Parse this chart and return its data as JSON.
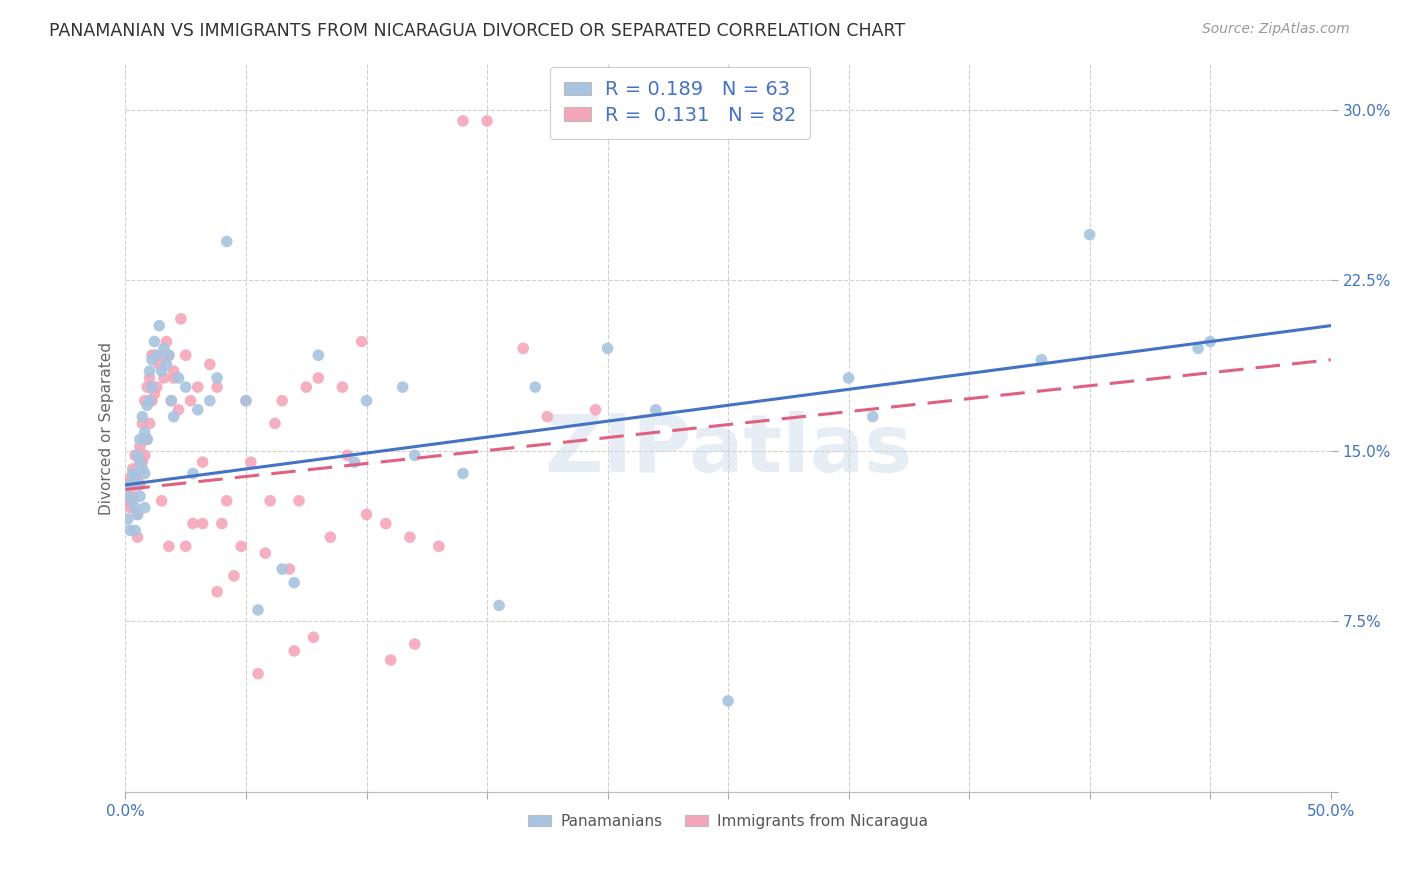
{
  "title": "PANAMANIAN VS IMMIGRANTS FROM NICARAGUA DIVORCED OR SEPARATED CORRELATION CHART",
  "source": "Source: ZipAtlas.com",
  "ylabel": "Divorced or Separated",
  "xlim": [
    0.0,
    0.5
  ],
  "ylim": [
    0.0,
    0.32
  ],
  "xticks": [
    0.0,
    0.05,
    0.1,
    0.15,
    0.2,
    0.25,
    0.3,
    0.35,
    0.4,
    0.45,
    0.5
  ],
  "yticks": [
    0.0,
    0.075,
    0.15,
    0.225,
    0.3
  ],
  "R_blue": 0.189,
  "N_blue": 63,
  "R_pink": 0.131,
  "N_pink": 82,
  "color_blue": "#a8c4e0",
  "color_pink": "#f4a7b9",
  "line_color_blue": "#4472c4",
  "line_color_pink": "#e06080",
  "watermark": "ZIPatlas",
  "legend_label_blue": "Panamanians",
  "legend_label_pink": "Immigrants from Nicaragua",
  "blue_x": [
    0.001,
    0.001,
    0.002,
    0.002,
    0.003,
    0.003,
    0.004,
    0.004,
    0.004,
    0.005,
    0.005,
    0.005,
    0.006,
    0.006,
    0.006,
    0.007,
    0.007,
    0.008,
    0.008,
    0.008,
    0.009,
    0.009,
    0.01,
    0.01,
    0.011,
    0.011,
    0.012,
    0.013,
    0.014,
    0.015,
    0.016,
    0.017,
    0.018,
    0.019,
    0.02,
    0.022,
    0.025,
    0.028,
    0.03,
    0.035,
    0.038,
    0.042,
    0.05,
    0.055,
    0.065,
    0.07,
    0.08,
    0.095,
    0.1,
    0.115,
    0.12,
    0.14,
    0.155,
    0.17,
    0.2,
    0.22,
    0.25,
    0.3,
    0.31,
    0.38,
    0.4,
    0.445,
    0.45
  ],
  "blue_y": [
    0.13,
    0.12,
    0.135,
    0.115,
    0.128,
    0.14,
    0.138,
    0.125,
    0.115,
    0.135,
    0.148,
    0.122,
    0.145,
    0.13,
    0.155,
    0.142,
    0.165,
    0.158,
    0.125,
    0.14,
    0.17,
    0.155,
    0.185,
    0.172,
    0.19,
    0.178,
    0.198,
    0.192,
    0.205,
    0.185,
    0.195,
    0.188,
    0.192,
    0.172,
    0.165,
    0.182,
    0.178,
    0.14,
    0.168,
    0.172,
    0.182,
    0.242,
    0.172,
    0.08,
    0.098,
    0.092,
    0.192,
    0.145,
    0.172,
    0.178,
    0.148,
    0.14,
    0.082,
    0.178,
    0.195,
    0.168,
    0.04,
    0.182,
    0.165,
    0.19,
    0.245,
    0.195,
    0.198
  ],
  "pink_x": [
    0.001,
    0.001,
    0.002,
    0.002,
    0.003,
    0.003,
    0.004,
    0.004,
    0.005,
    0.005,
    0.005,
    0.006,
    0.006,
    0.006,
    0.007,
    0.007,
    0.008,
    0.008,
    0.008,
    0.009,
    0.009,
    0.01,
    0.01,
    0.011,
    0.011,
    0.012,
    0.012,
    0.013,
    0.014,
    0.015,
    0.016,
    0.017,
    0.018,
    0.019,
    0.02,
    0.022,
    0.023,
    0.025,
    0.027,
    0.03,
    0.032,
    0.035,
    0.038,
    0.04,
    0.045,
    0.05,
    0.055,
    0.06,
    0.065,
    0.07,
    0.075,
    0.08,
    0.09,
    0.1,
    0.11,
    0.12,
    0.13,
    0.14,
    0.15,
    0.165,
    0.175,
    0.195,
    0.015,
    0.018,
    0.02,
    0.025,
    0.028,
    0.032,
    0.038,
    0.042,
    0.048,
    0.052,
    0.058,
    0.062,
    0.068,
    0.072,
    0.078,
    0.085,
    0.092,
    0.098,
    0.108,
    0.118
  ],
  "pink_y": [
    0.135,
    0.128,
    0.138,
    0.125,
    0.142,
    0.13,
    0.148,
    0.135,
    0.138,
    0.122,
    0.112,
    0.152,
    0.135,
    0.145,
    0.162,
    0.145,
    0.172,
    0.155,
    0.148,
    0.178,
    0.155,
    0.182,
    0.162,
    0.192,
    0.172,
    0.192,
    0.175,
    0.178,
    0.188,
    0.192,
    0.182,
    0.198,
    0.192,
    0.172,
    0.182,
    0.168,
    0.208,
    0.192,
    0.172,
    0.178,
    0.145,
    0.188,
    0.178,
    0.118,
    0.095,
    0.172,
    0.052,
    0.128,
    0.172,
    0.062,
    0.178,
    0.182,
    0.178,
    0.122,
    0.058,
    0.065,
    0.108,
    0.295,
    0.295,
    0.195,
    0.165,
    0.168,
    0.128,
    0.108,
    0.185,
    0.108,
    0.118,
    0.118,
    0.088,
    0.128,
    0.108,
    0.145,
    0.105,
    0.162,
    0.098,
    0.128,
    0.068,
    0.112,
    0.148,
    0.198,
    0.118,
    0.112
  ]
}
